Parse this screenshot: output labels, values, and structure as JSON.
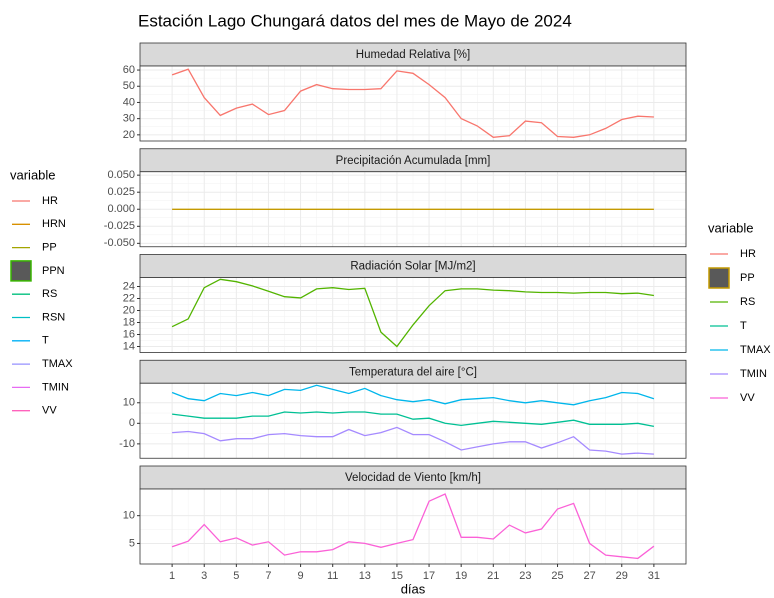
{
  "chart_data": {
    "type": "line",
    "title": "Estación Lago Chungará datos del mes de Mayo de 2024",
    "xlabel": "días",
    "x": [
      1,
      2,
      3,
      4,
      5,
      6,
      7,
      8,
      9,
      10,
      11,
      12,
      13,
      14,
      15,
      16,
      17,
      18,
      19,
      20,
      21,
      22,
      23,
      24,
      25,
      26,
      27,
      28,
      29,
      30,
      31
    ],
    "xlim": [
      -1,
      33
    ],
    "xticks": [
      1,
      3,
      5,
      7,
      9,
      11,
      13,
      15,
      17,
      19,
      21,
      23,
      25,
      27,
      29,
      31
    ],
    "grid": true,
    "panels": [
      {
        "title": "Humedad Relativa [%]",
        "ylim": [
          16.2,
          62.5
        ],
        "yticks": [
          20,
          30,
          40,
          50,
          60
        ],
        "series": [
          {
            "name": "HR",
            "color": "#F8766D",
            "values": [
              57,
              60.5,
              43,
              32,
              36.5,
              39,
              32.5,
              35,
              47,
              51,
              48.5,
              48,
              48,
              48.5,
              59.5,
              58,
              51,
              43,
              30,
              25.5,
              18.5,
              19.5,
              28.5,
              27.5,
              19,
              18.5,
              20,
              24,
              29.5,
              31.5,
              31
            ]
          }
        ]
      },
      {
        "title": "Precipitación Acumulada [mm]",
        "ylim": [
          -0.055,
          0.055
        ],
        "yticks": [
          {
            "value": -0.05,
            "label": "-0.050"
          },
          {
            "value": -0.025,
            "label": "-0.025"
          },
          {
            "value": 0,
            "label": "0.000"
          },
          {
            "value": 0.025,
            "label": "0.025"
          },
          {
            "value": 0.05,
            "label": "0.050"
          }
        ],
        "series": [
          {
            "name": "PP",
            "color": "#C49A00",
            "values": [
              0,
              0,
              0,
              0,
              0,
              0,
              0,
              0,
              0,
              0,
              0,
              0,
              0,
              0,
              0,
              0,
              0,
              0,
              0,
              0,
              0,
              0,
              0,
              0,
              0,
              0,
              0,
              0,
              0,
              0,
              0
            ]
          }
        ]
      },
      {
        "title": "Radiación Solar [MJ/m2]",
        "ylim": [
          13.0,
          25.5
        ],
        "yticks": [
          14,
          16,
          18,
          20,
          22,
          24
        ],
        "series": [
          {
            "name": "RS",
            "color": "#53B400",
            "values": [
              17.3,
              18.6,
              23.8,
              25.2,
              24.8,
              24.1,
              23.2,
              22.3,
              22.1,
              23.6,
              23.8,
              23.5,
              23.7,
              16.4,
              14.0,
              17.6,
              20.8,
              23.3,
              23.6,
              23.6,
              23.4,
              23.3,
              23.1,
              23.0,
              23.0,
              22.9,
              23.0,
              23.0,
              22.8,
              22.9,
              22.5
            ]
          }
        ]
      },
      {
        "title": "Temperatura del aire [°C]",
        "ylim": [
          -17,
          19.5
        ],
        "yticks": [
          -10,
          0,
          10
        ],
        "series": [
          {
            "name": "TMAX",
            "color": "#00B6EB",
            "values": [
              15,
              12,
              11,
              14.5,
              13.5,
              15,
              13.5,
              16.5,
              16,
              18.5,
              16.5,
              14.5,
              17,
              13.5,
              11.5,
              10.5,
              11.5,
              9.5,
              11.5,
              12,
              12.5,
              11,
              10,
              11,
              10,
              9,
              11,
              12.5,
              15,
              14.5,
              12
            ]
          },
          {
            "name": "T",
            "color": "#00C094",
            "values": [
              4.5,
              3.5,
              2.5,
              2.5,
              2.5,
              3.5,
              3.5,
              5.5,
              5,
              5.5,
              5,
              5.5,
              5.5,
              4.5,
              4.5,
              2,
              2.5,
              0,
              -1,
              0,
              1,
              0.5,
              0,
              -0.5,
              0.5,
              1.5,
              -0.5,
              -0.5,
              -0.5,
              0,
              -1.5
            ]
          },
          {
            "name": "TMIN",
            "color": "#A58AFF",
            "values": [
              -4.5,
              -4,
              -5,
              -8.5,
              -7.5,
              -7.5,
              -5.5,
              -5,
              -6,
              -6.5,
              -6.5,
              -3,
              -6,
              -4.5,
              -2,
              -5.5,
              -5.5,
              -9,
              -13,
              -11.5,
              -10,
              -9,
              -9,
              -12,
              -9.5,
              -6.5,
              -13,
              -13.5,
              -15,
              -14.5,
              -15
            ]
          }
        ]
      },
      {
        "title": "Velocidad de Viento [km/h]",
        "ylim": [
          1.3,
          14.8
        ],
        "yticks": [
          5,
          10
        ],
        "series": [
          {
            "name": "VV",
            "color": "#FB61D7",
            "values": [
              4.4,
              5.4,
              8.4,
              5.3,
              6.0,
              4.7,
              5.3,
              2.9,
              3.5,
              3.5,
              3.9,
              5.3,
              5.0,
              4.3,
              5.0,
              5.7,
              12.6,
              13.9,
              6.1,
              6.1,
              5.8,
              8.3,
              6.9,
              7.6,
              11.2,
              12.2,
              5.0,
              2.9,
              2.6,
              2.3,
              4.5
            ]
          }
        ]
      }
    ],
    "legends": [
      {
        "title": "variable",
        "entries": [
          {
            "name": "HR",
            "color": "#F8766D"
          },
          {
            "name": "HRN",
            "color": "#D89000"
          },
          {
            "name": "PP",
            "color": "#A3A500"
          },
          {
            "name": "PPN",
            "color": "#39B600",
            "key": "box",
            "fill": "#595959"
          },
          {
            "name": "RS",
            "color": "#00BF7D"
          },
          {
            "name": "RSN",
            "color": "#00BFC4"
          },
          {
            "name": "T",
            "color": "#00B0F6"
          },
          {
            "name": "TMAX",
            "color": "#9590FF"
          },
          {
            "name": "TMIN",
            "color": "#E76BF3"
          },
          {
            "name": "VV",
            "color": "#FF62BC"
          }
        ]
      },
      {
        "title": "variable",
        "entries": [
          {
            "name": "HR",
            "color": "#F8766D"
          },
          {
            "name": "PP",
            "color": "#C49A00",
            "key": "box",
            "fill": "#595959"
          },
          {
            "name": "RS",
            "color": "#53B400"
          },
          {
            "name": "T",
            "color": "#00C094"
          },
          {
            "name": "TMAX",
            "color": "#00B6EB"
          },
          {
            "name": "TMIN",
            "color": "#A58AFF"
          },
          {
            "name": "VV",
            "color": "#FB61D7"
          }
        ]
      }
    ]
  }
}
